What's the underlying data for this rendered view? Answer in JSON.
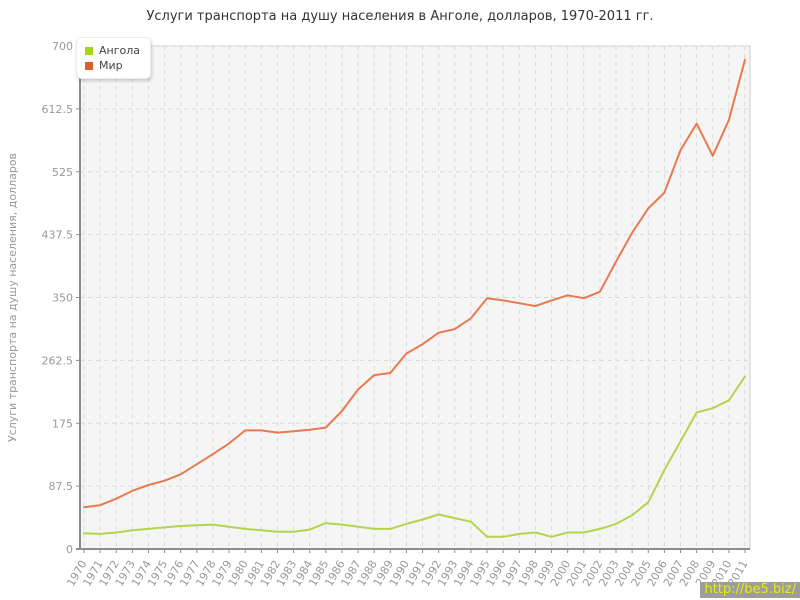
{
  "title": "Услуги транспорта на душу населения в Анголе, долларов, 1970-2011 гг.",
  "watermark": "http://be5.biz/",
  "watermark_colors": {
    "background": "#9d9d9d",
    "text": "#e8ee00"
  },
  "chart_data": {
    "type": "line",
    "title": "Услуги транспорта на душу населения в Анголе, долларов, 1970-2011 гг.",
    "xlabel": "",
    "ylabel": "Услуги транспорта на душу населения, долларов",
    "ylim": [
      0,
      700
    ],
    "yticks": [
      0,
      87.5,
      175,
      262.5,
      350,
      437.5,
      525,
      612.5,
      700
    ],
    "grid": true,
    "legend_position": "top-left",
    "plot_bg": "#f5f5f5",
    "grid_color": "#d9d9d9",
    "axis_color": "#8c8c8c",
    "tick_label_color": "#999999",
    "x": [
      1970,
      1971,
      1972,
      1973,
      1974,
      1975,
      1976,
      1977,
      1978,
      1979,
      1980,
      1981,
      1982,
      1983,
      1984,
      1985,
      1986,
      1987,
      1988,
      1989,
      1990,
      1991,
      1992,
      1993,
      1994,
      1995,
      1996,
      1997,
      1998,
      1999,
      2000,
      2001,
      2002,
      2003,
      2004,
      2005,
      2006,
      2007,
      2008,
      2009,
      2010,
      2011
    ],
    "series": [
      {
        "id": "angola",
        "name": "Ангола",
        "color": "#b5d44d",
        "swatch": "#a8d411",
        "values": [
          22,
          21,
          23,
          26,
          28,
          30,
          32,
          33,
          34,
          31,
          28,
          26,
          24,
          24,
          27,
          36,
          34,
          31,
          28,
          28,
          35,
          41,
          48,
          43,
          38,
          17,
          17,
          21,
          23,
          17,
          23,
          23,
          28,
          35,
          47,
          65,
          110,
          150,
          190,
          196,
          207,
          240
        ]
      },
      {
        "id": "mir",
        "name": "Мир",
        "color": "#e87a50",
        "swatch": "#dd5f2b",
        "values": [
          58,
          61,
          70,
          81,
          89,
          95,
          104,
          118,
          132,
          147,
          165,
          165,
          162,
          164,
          166,
          169,
          192,
          222,
          242,
          245,
          272,
          285,
          301,
          306,
          321,
          349,
          346,
          342,
          338,
          346,
          353,
          349,
          358,
          400,
          440,
          474,
          496,
          555,
          592,
          547,
          597,
          681
        ]
      }
    ]
  }
}
